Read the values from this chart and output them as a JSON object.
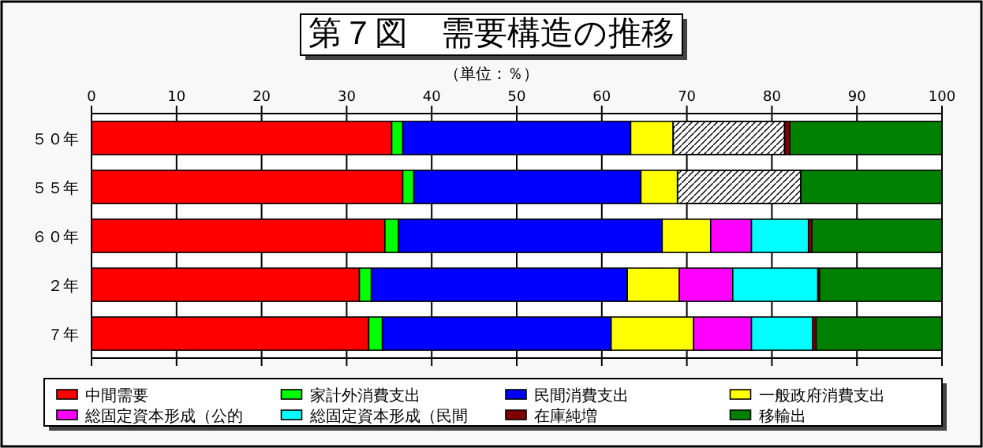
{
  "chart_data": {
    "type": "bar",
    "orientation": "horizontal",
    "stacked": true,
    "title": "第７図　需要構造の推移",
    "subtitle": "（単位：％）",
    "categories": [
      "５０年",
      "５５年",
      "６０年",
      "２年",
      "７年"
    ],
    "xlim": [
      0,
      100
    ],
    "xticks": [
      0,
      10,
      20,
      30,
      40,
      50,
      60,
      70,
      80,
      90,
      100
    ],
    "grid": "x",
    "legend": "bottom",
    "series": [
      {
        "name": "中間需要",
        "color": "#ff0000",
        "values": [
          35.3,
          36.6,
          34.5,
          31.5,
          32.6
        ]
      },
      {
        "name": "家計外消費支出",
        "color": "#00ff00",
        "values": [
          1.3,
          1.3,
          1.6,
          1.4,
          1.6
        ]
      },
      {
        "name": "民間消費支出",
        "color": "#0000ff",
        "values": [
          26.8,
          26.7,
          31.0,
          30.1,
          26.9
        ]
      },
      {
        "name": "一般政府消費支出",
        "color": "#ffff00",
        "values": [
          5.0,
          4.3,
          5.7,
          6.1,
          9.7
        ]
      },
      {
        "name": "総固定資本形成（公的",
        "color": "#ff00ff",
        "values": [
          null,
          null,
          4.8,
          6.3,
          6.8
        ]
      },
      {
        "name": "総固定資本形成（民間",
        "color": "#00ffff",
        "values": [
          null,
          null,
          6.7,
          10.0,
          7.2
        ]
      },
      {
        "color": "#ffffff",
        "values": [
          13.1,
          14.5,
          null,
          null,
          null
        ]
      },
      {
        "name": "在庫純増",
        "color": "#800000",
        "values": [
          0.6,
          0.0,
          0.4,
          0.2,
          0.4
        ]
      },
      {
        "name": "移輸出",
        "color": "#008000",
        "values": [
          17.9,
          16.6,
          15.3,
          14.4,
          14.8
        ]
      }
    ]
  }
}
